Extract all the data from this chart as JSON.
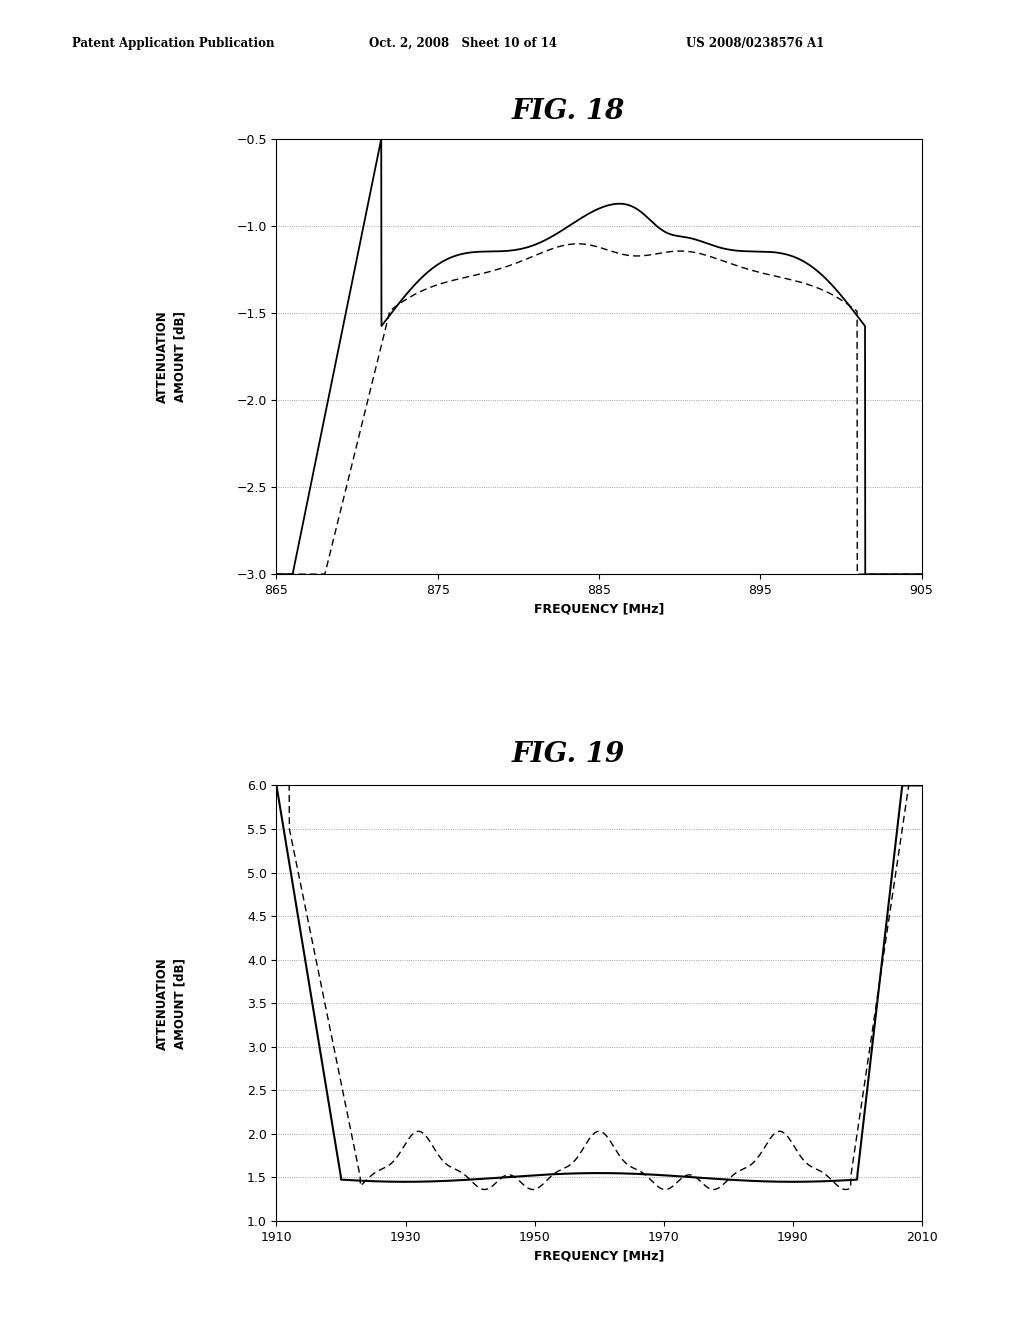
{
  "fig18": {
    "title": "FIG. 18",
    "xlabel": "FREQUENCY [MHz]",
    "ylabel": "ATTENUATION\nAMOUNT [dB]",
    "xlim": [
      865,
      905
    ],
    "ylim": [
      -3.0,
      -0.5
    ],
    "xticks": [
      865,
      875,
      885,
      895,
      905
    ],
    "yticks": [
      -3.0,
      -2.5,
      -2.0,
      -1.5,
      -1.0,
      -0.5
    ],
    "grid_yticks": [
      -1.0,
      -1.5,
      -2.0,
      -2.5
    ]
  },
  "fig19": {
    "title": "FIG. 19",
    "xlabel": "FREQUENCY [MHz]",
    "ylabel": "ATTENUATION\nAMOUNT [dB]",
    "xlim": [
      1910,
      2010
    ],
    "ylim": [
      1.0,
      6.0
    ],
    "xticks": [
      1910,
      1930,
      1950,
      1970,
      1990,
      2010
    ],
    "yticks": [
      1.0,
      1.5,
      2.0,
      2.5,
      3.0,
      3.5,
      4.0,
      4.5,
      5.0,
      5.5,
      6.0
    ],
    "grid_yticks": [
      1.5,
      2.0,
      2.5,
      3.0,
      3.5,
      4.0,
      4.5,
      5.0,
      5.5,
      6.0
    ]
  },
  "header_left": "Patent Application Publication",
  "header_center": "Oct. 2, 2008   Sheet 10 of 14",
  "header_right": "US 2008/0238576 A1",
  "background_color": "#ffffff",
  "line_color": "#000000"
}
